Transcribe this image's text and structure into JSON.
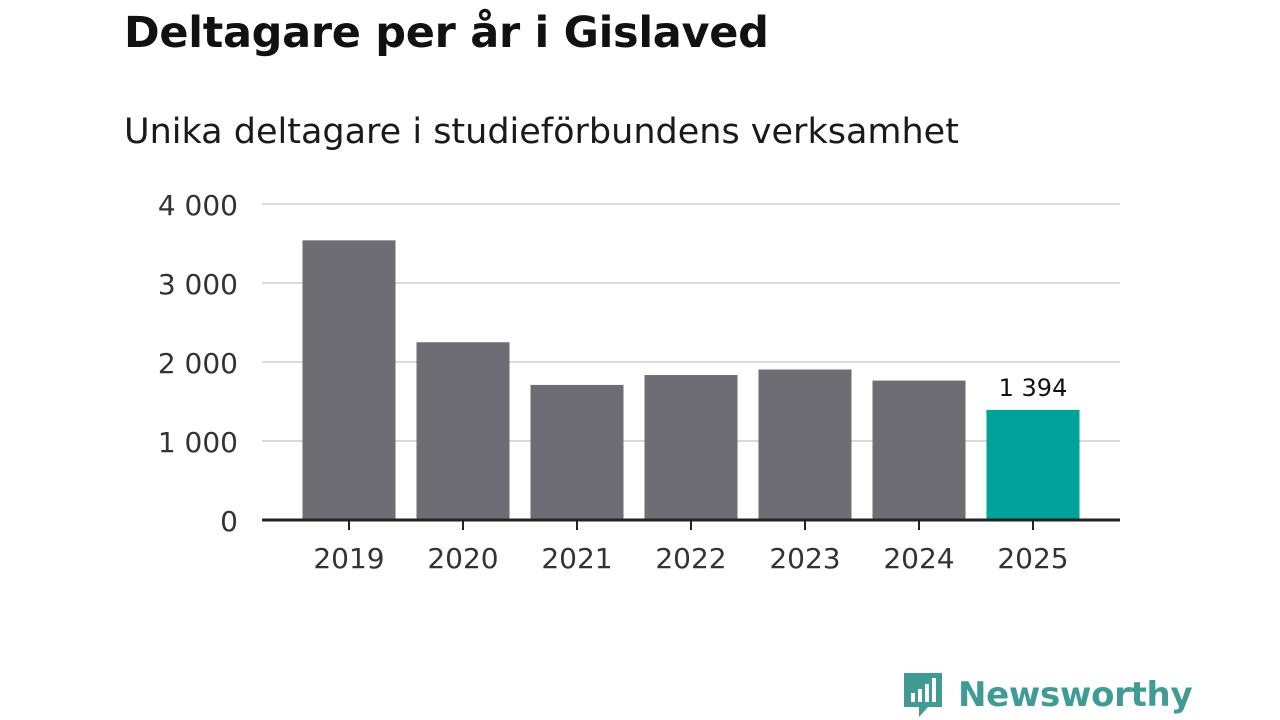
{
  "header": {
    "title": "Deltagare per år i Gislaved",
    "subtitle": "Unika deltagare i studieförbundens verksamhet"
  },
  "colors": {
    "bar": "#6e6d73",
    "highlight": "#00a29a",
    "grid": "#d9d9d9",
    "axis": "#222222",
    "text": "#333333"
  },
  "chart_data": {
    "type": "bar",
    "title": "Deltagare per år i Gislaved",
    "subtitle": "Unika deltagare i studieförbundens verksamhet",
    "xlabel": "",
    "ylabel": "",
    "categories": [
      "2019",
      "2020",
      "2021",
      "2022",
      "2023",
      "2024",
      "2025"
    ],
    "values": [
      3540,
      2250,
      1710,
      1835,
      1905,
      1765,
      1394
    ],
    "highlight_index": 6,
    "data_labels": [
      {
        "index": 6,
        "text": "1 394"
      }
    ],
    "ylim": [
      0,
      4000
    ],
    "yticks": [
      0,
      1000,
      2000,
      3000,
      4000
    ],
    "ytick_labels": [
      "0",
      "1 000",
      "2 000",
      "3 000",
      "4 000"
    ],
    "grid": true
  },
  "footer": {
    "brand": "Newsworthy",
    "brand_icon": "bar-chart-speech-bubble-icon"
  }
}
